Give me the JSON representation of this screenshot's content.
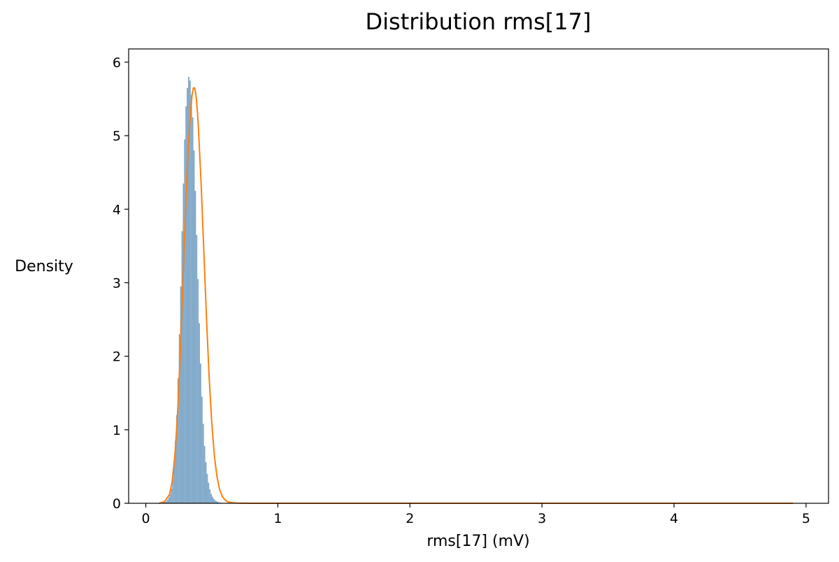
{
  "chart_data": {
    "type": "histogram+line",
    "title": "Distribution rms[17]",
    "xlabel": "rms[17] (mV)",
    "ylabel": "Density",
    "xlim": [
      -0.13,
      5.17
    ],
    "ylim": [
      0,
      6.18
    ],
    "xticks": [
      0,
      1,
      2,
      3,
      4,
      5
    ],
    "xtick_labels": [
      "0",
      "1",
      "2",
      "3",
      "4",
      "5"
    ],
    "yticks": [
      0,
      1,
      2,
      3,
      4,
      5,
      6
    ],
    "ytick_labels": [
      "0",
      "1",
      "2",
      "3",
      "4",
      "5",
      "6"
    ],
    "grid": false,
    "legend": "none",
    "histogram": {
      "color": "#81a9ca",
      "bin_width": 0.01,
      "bins_x": [
        0.1,
        0.11,
        0.12,
        0.13,
        0.14,
        0.15,
        0.16,
        0.17,
        0.18,
        0.19,
        0.2,
        0.21,
        0.22,
        0.23,
        0.24,
        0.25,
        0.26,
        0.27,
        0.28,
        0.29,
        0.3,
        0.31,
        0.32,
        0.33,
        0.34,
        0.35,
        0.36,
        0.37,
        0.38,
        0.39,
        0.4,
        0.41,
        0.42,
        0.43,
        0.44,
        0.45,
        0.46,
        0.47,
        0.48,
        0.49,
        0.5,
        0.51,
        0.52,
        0.53,
        0.54,
        0.55,
        0.56,
        0.57,
        0.58,
        0.59,
        0.6,
        0.61,
        0.62,
        0.63,
        0.64,
        0.65,
        0.66,
        0.67,
        0.68,
        0.69
      ],
      "density": [
        0.0,
        0.0,
        0.01,
        0.01,
        0.02,
        0.03,
        0.05,
        0.08,
        0.12,
        0.2,
        0.35,
        0.55,
        0.85,
        1.2,
        1.7,
        2.3,
        2.95,
        3.7,
        4.35,
        4.95,
        5.4,
        5.65,
        5.8,
        5.75,
        5.55,
        5.25,
        4.8,
        4.25,
        3.65,
        3.05,
        2.45,
        1.9,
        1.45,
        1.08,
        0.78,
        0.56,
        0.4,
        0.28,
        0.19,
        0.13,
        0.09,
        0.06,
        0.04,
        0.03,
        0.02,
        0.01,
        0.01,
        0.0,
        0.0,
        0.0,
        0.0,
        0.0,
        0.0,
        0.0,
        0.0,
        0.0,
        0.0,
        0.0,
        0.0,
        0.0
      ]
    },
    "kde": {
      "color": "#ff7f0e",
      "x": [
        0.1,
        0.14,
        0.18,
        0.2,
        0.22,
        0.24,
        0.26,
        0.28,
        0.3,
        0.32,
        0.34,
        0.35,
        0.36,
        0.37,
        0.38,
        0.39,
        0.4,
        0.42,
        0.44,
        0.46,
        0.48,
        0.5,
        0.52,
        0.54,
        0.56,
        0.58,
        0.6,
        0.62,
        0.65,
        0.7,
        0.8,
        1.0,
        1.5,
        2.0,
        3.0,
        4.0,
        4.9
      ],
      "y": [
        0.0,
        0.02,
        0.12,
        0.3,
        0.65,
        1.2,
        2.0,
        2.95,
        3.95,
        4.8,
        5.35,
        5.55,
        5.65,
        5.65,
        5.55,
        5.35,
        5.05,
        4.3,
        3.4,
        2.5,
        1.7,
        1.08,
        0.63,
        0.35,
        0.18,
        0.09,
        0.045,
        0.02,
        0.008,
        0.002,
        0.0,
        0.0,
        0.0,
        0.0,
        0.0,
        0.0,
        0.0
      ]
    }
  }
}
